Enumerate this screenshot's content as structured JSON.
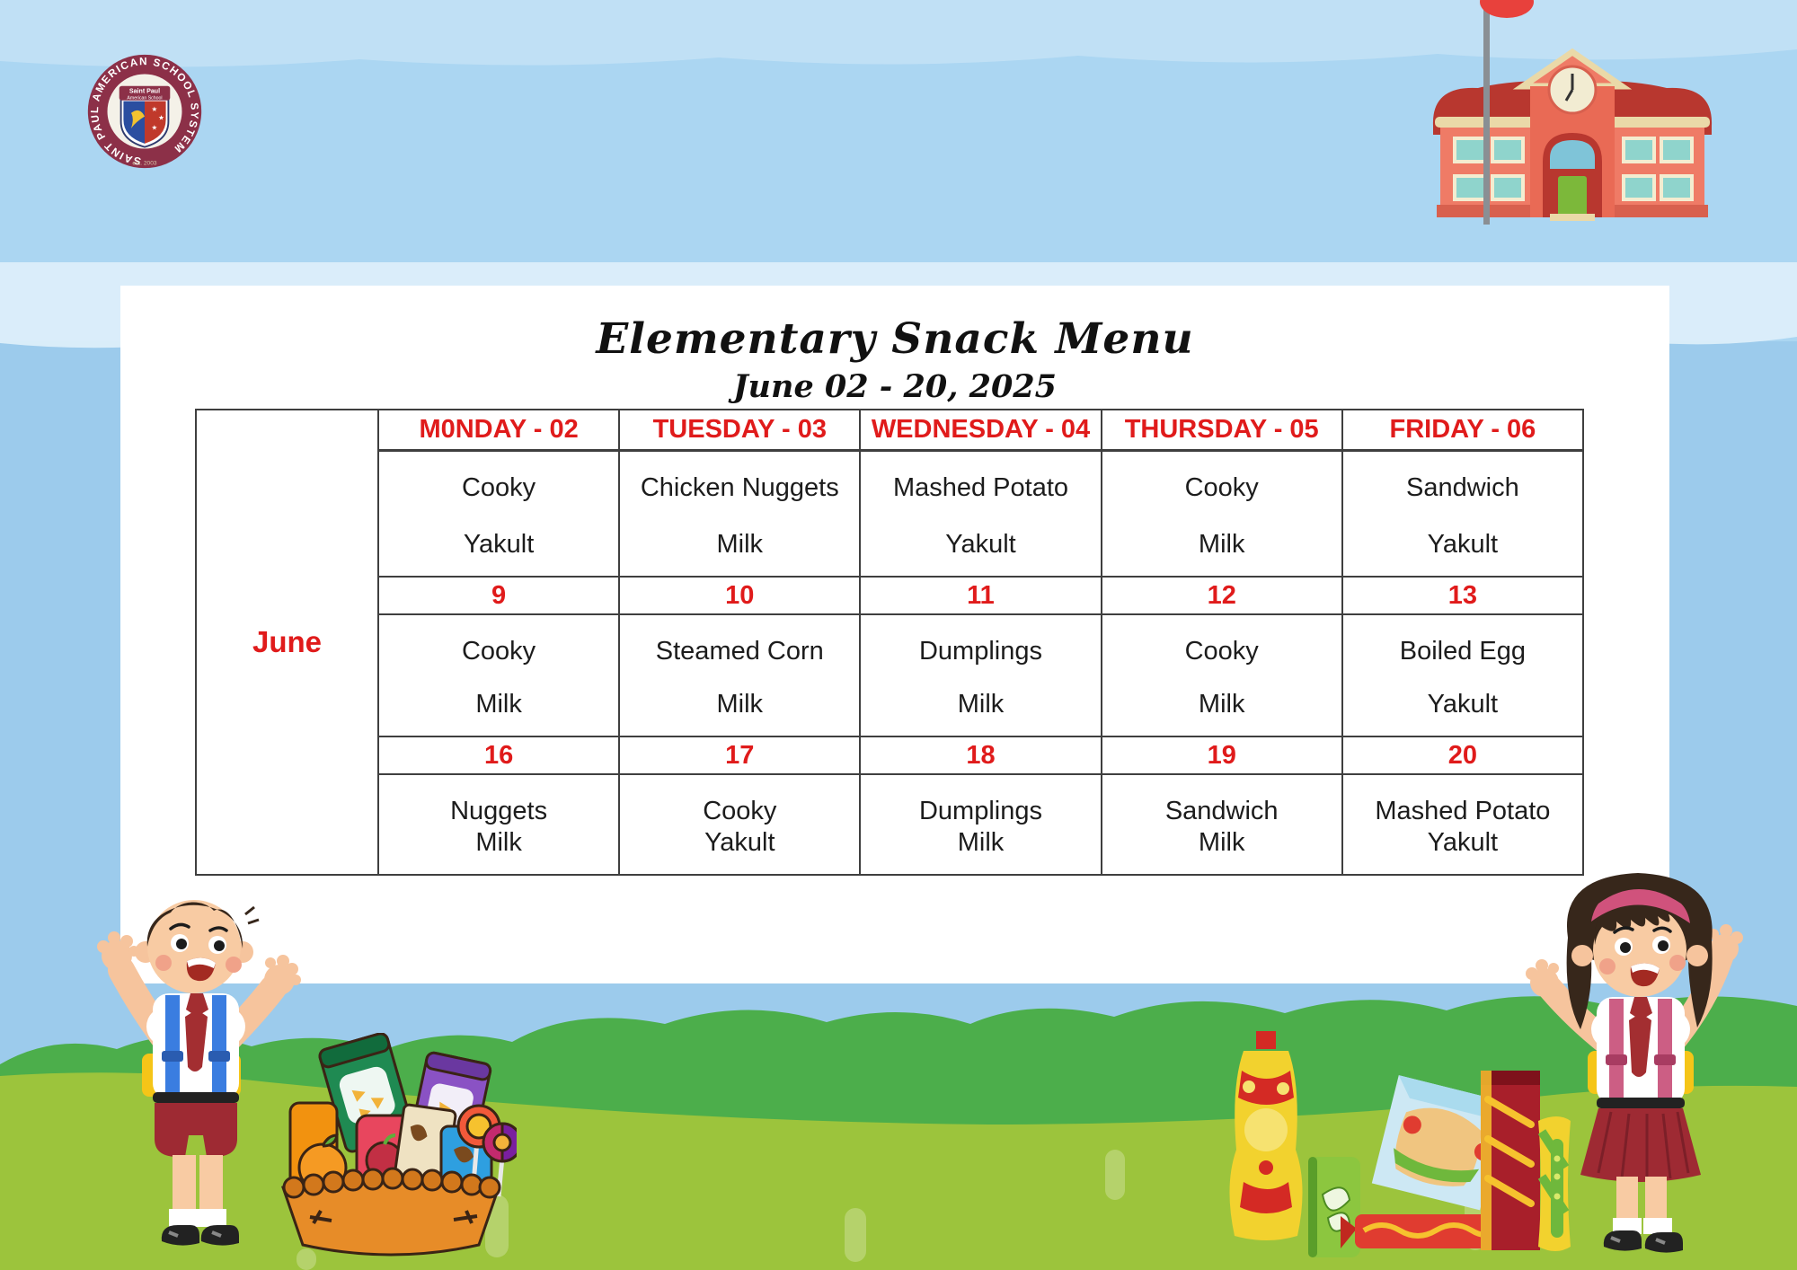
{
  "page": {
    "title": "Elementary Snack Menu",
    "subtitle": "June 02 - 20, 2025"
  },
  "logo": {
    "ring_text": "SAINT PAUL AMERICAN SCHOOL SYSTEM",
    "shield_title": "Saint Paul",
    "shield_subtitle": "American School",
    "established": "est. 2003"
  },
  "menu": {
    "month_label": "June",
    "columns": [
      "M0NDAY - 02",
      "TUESDAY - 03",
      "WEDNESDAY - 04",
      "THURSDAY - 05",
      "FRIDAY - 06"
    ],
    "weeks": [
      {
        "dates": null,
        "items": [
          [
            "Cooky",
            "Yakult"
          ],
          [
            "Chicken Nuggets",
            "Milk"
          ],
          [
            "Mashed Potato",
            "Yakult"
          ],
          [
            "Cooky",
            "Milk"
          ],
          [
            "Sandwich",
            "Yakult"
          ]
        ]
      },
      {
        "dates": [
          "9",
          "10",
          "11",
          "12",
          "13"
        ],
        "items": [
          [
            "Cooky",
            "Milk"
          ],
          [
            "Steamed Corn",
            "Milk"
          ],
          [
            "Dumplings",
            "Milk"
          ],
          [
            "Cooky",
            "Milk"
          ],
          [
            "Boiled Egg",
            "Yakult"
          ]
        ]
      },
      {
        "dates": [
          "16",
          "17",
          "18",
          "19",
          "20"
        ],
        "items": [
          [
            "Nuggets",
            "Milk"
          ],
          [
            "Cooky",
            "Yakult"
          ],
          [
            "Dumplings",
            "Milk"
          ],
          [
            "Sandwich",
            "Milk"
          ],
          [
            "Mashed Potato",
            "Yakult"
          ]
        ]
      }
    ]
  },
  "colors": {
    "accent_red": "#e01b1b",
    "text_black": "#1c1c1c",
    "sky": "#abd6f2",
    "cloud_band": "#dceefa",
    "hedge_green": "#4cae4b",
    "grass_green": "#9cc43c",
    "panel_white": "#ffffff",
    "uniform_maroon": "#9e2a33"
  }
}
